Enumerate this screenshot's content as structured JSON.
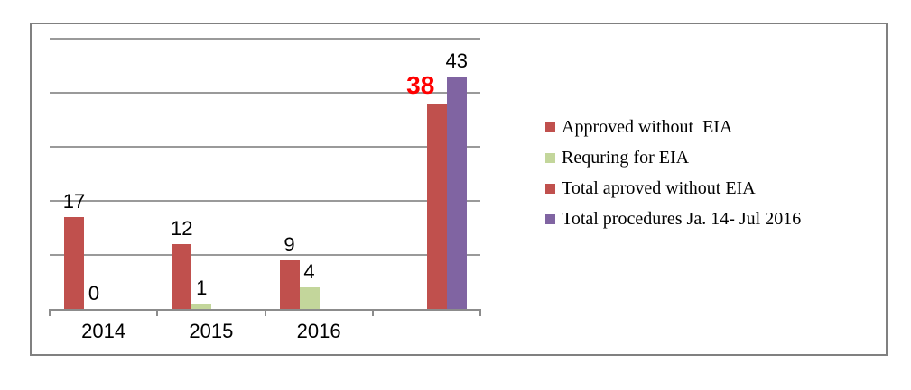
{
  "colors": {
    "red": "#C0504D",
    "green": "#C3D69B",
    "purple": "#8064A2",
    "highlight_red": "#FF0000",
    "gridline": "#9A9A9A",
    "axis": "#8C8C8C",
    "frame_border": "#808080",
    "text": "#000000"
  },
  "chart_data": {
    "type": "bar",
    "title": "",
    "xlabel": "",
    "ylabel": "",
    "categories": [
      "2014",
      "2015",
      "2016",
      ""
    ],
    "series": [
      {
        "name": "Approved without  EIA",
        "color_key": "red",
        "values": [
          17,
          12,
          9,
          null
        ],
        "highlight_label": false
      },
      {
        "name": "Requring for EIA",
        "color_key": "green",
        "values": [
          0,
          1,
          4,
          null
        ],
        "highlight_label": false
      },
      {
        "name": "Total aproved without EIA",
        "color_key": "red",
        "values": [
          null,
          null,
          null,
          38
        ],
        "highlight_label": true
      },
      {
        "name": "Total procedures Ja. 14- Jul 2016",
        "color_key": "purple",
        "values": [
          null,
          null,
          null,
          43
        ],
        "highlight_label": false
      }
    ],
    "data_labels": true,
    "ylim": [
      0,
      50
    ],
    "gridline_step": 10,
    "y_axis_labels_visible": false,
    "grid": true,
    "legend_position": "right"
  }
}
